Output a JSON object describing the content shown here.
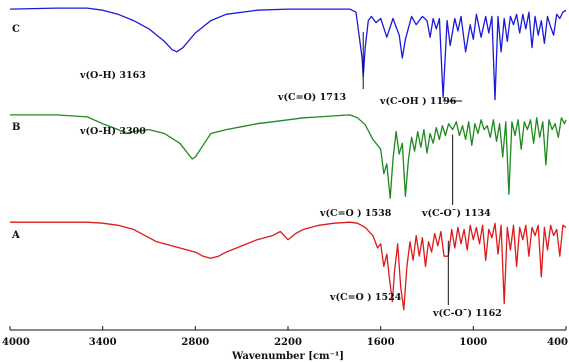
{
  "chart_data": {
    "type": "line",
    "xlabel": "Wavenumber [cm⁻¹]",
    "ylabel": "",
    "x_ticks": [
      4000,
      3400,
      2800,
      2200,
      1600,
      1000,
      400
    ],
    "xlim": [
      4000,
      400
    ],
    "x_reversed": true,
    "y_axis_shown": false,
    "series": [
      {
        "name": "C",
        "color": "#1a1adc",
        "x": [
          4000,
          3700,
          3500,
          3400,
          3300,
          3200,
          3100,
          3000,
          2950,
          2920,
          2880,
          2800,
          2700,
          2600,
          2400,
          2200,
          2000,
          1800,
          1760,
          1720,
          1713,
          1700,
          1680,
          1660,
          1630,
          1600,
          1560,
          1520,
          1480,
          1460,
          1440,
          1400,
          1370,
          1330,
          1300,
          1280,
          1260,
          1240,
          1220,
          1196,
          1170,
          1150,
          1120,
          1100,
          1080,
          1050,
          1020,
          1000,
          980,
          950,
          920,
          900,
          880,
          860,
          840,
          820,
          800,
          780,
          760,
          740,
          720,
          700,
          680,
          660,
          640,
          620,
          600,
          580,
          560,
          540,
          520,
          500,
          480,
          460,
          440,
          420,
          400
        ],
        "y": [
          0.97,
          0.98,
          0.98,
          0.96,
          0.92,
          0.86,
          0.78,
          0.66,
          0.58,
          0.56,
          0.6,
          0.74,
          0.86,
          0.92,
          0.96,
          0.97,
          0.97,
          0.97,
          0.94,
          0.5,
          0.32,
          0.6,
          0.86,
          0.9,
          0.84,
          0.88,
          0.7,
          0.88,
          0.72,
          0.5,
          0.68,
          0.9,
          0.82,
          0.9,
          0.86,
          0.7,
          0.88,
          0.78,
          0.88,
          0.12,
          0.86,
          0.62,
          0.88,
          0.76,
          0.9,
          0.56,
          0.82,
          0.68,
          0.92,
          0.7,
          0.9,
          0.74,
          0.9,
          0.1,
          0.9,
          0.56,
          0.88,
          0.66,
          0.9,
          0.82,
          0.92,
          0.74,
          0.92,
          0.78,
          0.94,
          0.6,
          0.9,
          0.72,
          0.86,
          0.64,
          0.9,
          0.8,
          0.72,
          0.92,
          0.88,
          0.94,
          0.96
        ]
      },
      {
        "name": "B",
        "color": "#1e8a1e",
        "x": [
          4000,
          3700,
          3500,
          3400,
          3300,
          3250,
          3200,
          3100,
          3000,
          2900,
          2850,
          2820,
          2800,
          2750,
          2700,
          2600,
          2500,
          2400,
          2300,
          2200,
          2100,
          2000,
          1900,
          1800,
          1750,
          1700,
          1650,
          1600,
          1580,
          1560,
          1538,
          1520,
          1500,
          1480,
          1460,
          1440,
          1420,
          1400,
          1380,
          1360,
          1340,
          1320,
          1300,
          1280,
          1260,
          1240,
          1220,
          1200,
          1180,
          1160,
          1134,
          1110,
          1090,
          1070,
          1050,
          1030,
          1010,
          990,
          970,
          950,
          930,
          910,
          890,
          870,
          850,
          830,
          810,
          790,
          770,
          750,
          730,
          710,
          690,
          670,
          650,
          630,
          610,
          590,
          570,
          550,
          530,
          510,
          490,
          470,
          450,
          430,
          410,
          400
        ],
        "y": [
          0.95,
          0.95,
          0.93,
          0.86,
          0.8,
          0.76,
          0.78,
          0.8,
          0.76,
          0.66,
          0.56,
          0.5,
          0.52,
          0.64,
          0.76,
          0.8,
          0.83,
          0.86,
          0.88,
          0.9,
          0.92,
          0.93,
          0.94,
          0.95,
          0.92,
          0.85,
          0.7,
          0.6,
          0.35,
          0.45,
          0.1,
          0.5,
          0.78,
          0.55,
          0.66,
          0.12,
          0.5,
          0.72,
          0.58,
          0.78,
          0.62,
          0.8,
          0.56,
          0.76,
          0.66,
          0.82,
          0.7,
          0.84,
          0.74,
          0.86,
          0.8,
          0.88,
          0.74,
          0.84,
          0.7,
          0.88,
          0.64,
          0.86,
          0.76,
          0.9,
          0.8,
          0.84,
          0.72,
          0.9,
          0.68,
          0.86,
          0.52,
          0.88,
          0.14,
          0.88,
          0.74,
          0.9,
          0.6,
          0.88,
          0.8,
          0.9,
          0.66,
          0.92,
          0.72,
          0.88,
          0.44,
          0.9,
          0.8,
          0.86,
          0.72,
          0.92,
          0.86,
          0.9
        ]
      },
      {
        "name": "A",
        "color": "#dc1a1a",
        "x": [
          4000,
          3700,
          3500,
          3400,
          3300,
          3200,
          3100,
          3050,
          3000,
          2900,
          2800,
          2750,
          2700,
          2650,
          2600,
          2500,
          2400,
          2300,
          2250,
          2200,
          2150,
          2100,
          2000,
          1900,
          1800,
          1750,
          1700,
          1650,
          1620,
          1600,
          1580,
          1560,
          1545,
          1524,
          1510,
          1490,
          1470,
          1450,
          1430,
          1410,
          1390,
          1370,
          1350,
          1330,
          1310,
          1290,
          1270,
          1250,
          1230,
          1210,
          1190,
          1162,
          1140,
          1120,
          1100,
          1080,
          1060,
          1040,
          1020,
          1000,
          980,
          960,
          940,
          920,
          900,
          880,
          860,
          840,
          820,
          800,
          780,
          760,
          740,
          720,
          700,
          680,
          660,
          640,
          620,
          600,
          580,
          560,
          540,
          520,
          500,
          480,
          460,
          440,
          420,
          400
        ],
        "y": [
          0.93,
          0.93,
          0.93,
          0.92,
          0.9,
          0.86,
          0.78,
          0.74,
          0.72,
          0.68,
          0.64,
          0.6,
          0.58,
          0.6,
          0.64,
          0.7,
          0.76,
          0.8,
          0.84,
          0.76,
          0.82,
          0.86,
          0.9,
          0.92,
          0.93,
          0.92,
          0.88,
          0.8,
          0.68,
          0.72,
          0.5,
          0.62,
          0.4,
          0.16,
          0.46,
          0.72,
          0.3,
          0.08,
          0.5,
          0.74,
          0.56,
          0.8,
          0.6,
          0.78,
          0.5,
          0.74,
          0.64,
          0.82,
          0.7,
          0.84,
          0.6,
          0.6,
          0.86,
          0.68,
          0.88,
          0.72,
          0.86,
          0.66,
          0.9,
          0.76,
          0.88,
          0.72,
          0.9,
          0.56,
          0.86,
          0.78,
          0.92,
          0.62,
          0.9,
          0.14,
          0.88,
          0.66,
          0.9,
          0.5,
          0.88,
          0.76,
          0.9,
          0.6,
          0.88,
          0.8,
          0.9,
          0.4,
          0.88,
          0.66,
          0.9,
          0.8,
          0.86,
          0.6,
          0.9,
          0.88
        ]
      }
    ],
    "annotations": [
      {
        "series": "C",
        "text": "v(O-H) 3163",
        "x": 3163
      },
      {
        "series": "C",
        "text": "v(C=O) 1713",
        "x": 1713
      },
      {
        "series": "C",
        "text": "v(C-OH ) 1196",
        "x": 1196
      },
      {
        "series": "B",
        "text": "v(O-H) 3300",
        "x": 3300
      },
      {
        "series": "B",
        "text": "v(C=O ) 1538",
        "x": 1538
      },
      {
        "series": "B",
        "text": "v(C-O¯) 1134",
        "x": 1134
      },
      {
        "series": "A",
        "text": "v(C=O ) 1524",
        "x": 1524
      },
      {
        "series": "A",
        "text": "v(C-O¯) 1162",
        "x": 1162
      }
    ],
    "grid": false,
    "legend": "none"
  }
}
